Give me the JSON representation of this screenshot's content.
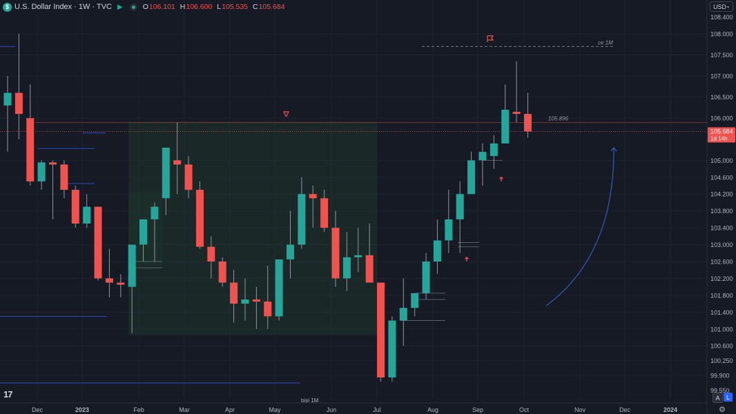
{
  "header": {
    "title": "U.S. Dollar Index · 1W · TVC",
    "ohlc": [
      {
        "k": "O",
        "v": "106.101"
      },
      {
        "k": "H",
        "v": "106.600"
      },
      {
        "k": "L",
        "v": "105.535"
      },
      {
        "k": "C",
        "v": "105.684"
      }
    ]
  },
  "currency": "USD",
  "logo_text": "17",
  "scale_buttons": {
    "auto": "A",
    "log": "L"
  },
  "colors": {
    "up": "#26a69a",
    "down": "#ef5350",
    "bg": "#161a25",
    "grid": "#1f2330",
    "curve": "#2f5fb8"
  },
  "chart_data": {
    "type": "candlestick",
    "title": "U.S. Dollar Index · 1W · TVC",
    "ylim": [
      99.55,
      108.35
    ],
    "y_ticks": [
      "108.000",
      "107.500",
      "107.000",
      "106.500",
      "106.000",
      "105.000",
      "104.600",
      "104.200",
      "103.800",
      "103.400",
      "103.000",
      "102.600",
      "102.200",
      "101.800",
      "101.400",
      "101.000",
      "100.600",
      "100.250",
      "99.900"
    ],
    "y_ticks_partial": [
      "108.400",
      "99.550"
    ],
    "x_labels": [
      "Dec",
      "2023",
      "Feb",
      "Mar",
      "Apr",
      "May",
      "Jun",
      "Jul",
      "Aug",
      "Sep",
      "Oct",
      "Nov",
      "Dec",
      "2024"
    ],
    "candles": [
      {
        "o": 106.3,
        "h": 107.0,
        "l": 105.2,
        "c": 106.6
      },
      {
        "o": 106.6,
        "h": 108.0,
        "l": 105.5,
        "c": 106.1
      },
      {
        "o": 106.0,
        "h": 106.8,
        "l": 104.4,
        "c": 104.5
      },
      {
        "o": 104.5,
        "h": 105.0,
        "l": 104.3,
        "c": 104.95
      },
      {
        "o": 104.95,
        "h": 105.0,
        "l": 103.6,
        "c": 104.9
      },
      {
        "o": 104.9,
        "h": 105.0,
        "l": 104.1,
        "c": 104.3
      },
      {
        "o": 104.3,
        "h": 104.4,
        "l": 103.4,
        "c": 103.5
      },
      {
        "o": 103.5,
        "h": 104.2,
        "l": 103.4,
        "c": 103.9
      },
      {
        "o": 103.9,
        "h": 103.9,
        "l": 102.15,
        "c": 102.2
      },
      {
        "o": 102.2,
        "h": 102.9,
        "l": 101.75,
        "c": 102.1
      },
      {
        "o": 102.1,
        "h": 102.3,
        "l": 101.75,
        "c": 102.05
      },
      {
        "o": 102.0,
        "h": 103.0,
        "l": 100.9,
        "c": 103.0
      },
      {
        "o": 103.0,
        "h": 103.6,
        "l": 102.6,
        "c": 103.6
      },
      {
        "o": 103.6,
        "h": 104.0,
        "l": 102.6,
        "c": 103.9
      },
      {
        "o": 104.1,
        "h": 105.3,
        "l": 103.7,
        "c": 105.3
      },
      {
        "o": 105.0,
        "h": 105.9,
        "l": 104.2,
        "c": 104.9
      },
      {
        "o": 104.9,
        "h": 105.1,
        "l": 104.1,
        "c": 104.3
      },
      {
        "o": 104.3,
        "h": 104.5,
        "l": 102.9,
        "c": 102.95
      },
      {
        "o": 102.95,
        "h": 103.2,
        "l": 102.2,
        "c": 102.6
      },
      {
        "o": 102.6,
        "h": 102.7,
        "l": 102.0,
        "c": 102.1
      },
      {
        "o": 102.1,
        "h": 102.4,
        "l": 101.15,
        "c": 101.6
      },
      {
        "o": 101.6,
        "h": 102.2,
        "l": 101.2,
        "c": 101.7
      },
      {
        "o": 101.7,
        "h": 102.0,
        "l": 101.0,
        "c": 101.65
      },
      {
        "o": 101.65,
        "h": 102.5,
        "l": 101.0,
        "c": 101.3
      },
      {
        "o": 101.3,
        "h": 102.6,
        "l": 101.2,
        "c": 102.65
      },
      {
        "o": 102.65,
        "h": 103.8,
        "l": 102.2,
        "c": 103.0
      },
      {
        "o": 103.0,
        "h": 104.6,
        "l": 102.9,
        "c": 104.2
      },
      {
        "o": 104.2,
        "h": 104.4,
        "l": 103.4,
        "c": 104.1
      },
      {
        "o": 104.1,
        "h": 104.3,
        "l": 103.3,
        "c": 103.4
      },
      {
        "o": 103.4,
        "h": 103.8,
        "l": 102.0,
        "c": 102.2
      },
      {
        "o": 102.2,
        "h": 103.3,
        "l": 101.9,
        "c": 102.7
      },
      {
        "o": 102.7,
        "h": 103.4,
        "l": 102.35,
        "c": 102.75
      },
      {
        "o": 102.75,
        "h": 103.5,
        "l": 102.1,
        "c": 102.1
      },
      {
        "o": 102.1,
        "h": 102.1,
        "l": 99.75,
        "c": 99.85
      },
      {
        "o": 99.85,
        "h": 101.3,
        "l": 99.75,
        "c": 101.2
      },
      {
        "o": 101.2,
        "h": 102.2,
        "l": 100.6,
        "c": 101.5
      },
      {
        "o": 101.5,
        "h": 101.8,
        "l": 101.3,
        "c": 101.85
      },
      {
        "o": 101.85,
        "h": 102.8,
        "l": 101.7,
        "c": 102.6
      },
      {
        "o": 102.6,
        "h": 103.6,
        "l": 102.3,
        "c": 103.1
      },
      {
        "o": 103.1,
        "h": 104.3,
        "l": 102.8,
        "c": 103.6
      },
      {
        "o": 103.6,
        "h": 104.5,
        "l": 102.8,
        "c": 104.2
      },
      {
        "o": 104.2,
        "h": 105.2,
        "l": 104.2,
        "c": 105.0
      },
      {
        "o": 105.0,
        "h": 105.4,
        "l": 104.4,
        "c": 105.2
      },
      {
        "o": 105.1,
        "h": 105.6,
        "l": 104.8,
        "c": 105.4
      },
      {
        "o": 105.4,
        "h": 106.8,
        "l": 105.4,
        "c": 106.2
      },
      {
        "o": 106.15,
        "h": 107.35,
        "l": 105.9,
        "c": 106.1
      },
      {
        "o": 106.1,
        "h": 106.6,
        "l": 105.535,
        "c": 105.684
      }
    ],
    "current_price": {
      "value": 105.684,
      "label": "105.684",
      "countdown": "1d 14h"
    },
    "annotations": {
      "line_label": "105.896",
      "top_label": "ce 1M",
      "bottom_label": "bisi 1M"
    }
  }
}
